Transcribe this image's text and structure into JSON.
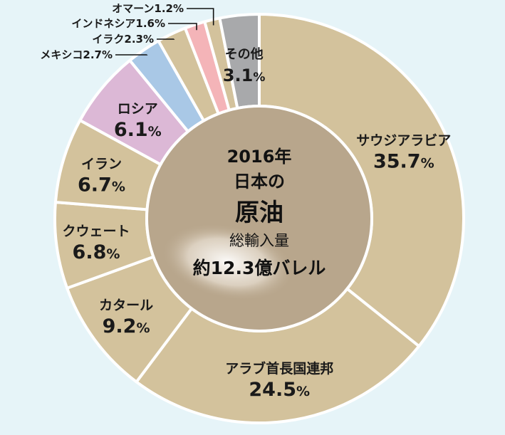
{
  "chart_data": {
    "type": "pie",
    "variant": "donut",
    "center": {
      "line1": "2016年",
      "line2": "日本の",
      "line3": "原油",
      "line4": "総輸入量",
      "line5": "約12.3億バレル"
    },
    "slices": [
      {
        "label": "サウジアラビア",
        "value": 35.7,
        "display": "35.7",
        "color": "#d3c29c"
      },
      {
        "label": "アラブ首長国連邦",
        "value": 24.5,
        "display": "24.5",
        "color": "#d3c29c"
      },
      {
        "label": "カタール",
        "value": 9.2,
        "display": "9.2",
        "color": "#d3c29c"
      },
      {
        "label": "クウェート",
        "value": 6.8,
        "display": "6.8",
        "color": "#d3c29c"
      },
      {
        "label": "イラン",
        "value": 6.7,
        "display": "6.7",
        "color": "#d3c29c"
      },
      {
        "label": "ロシア",
        "value": 6.1,
        "display": "6.1",
        "color": "#dcb8d6"
      },
      {
        "label": "メキシコ",
        "value": 2.7,
        "display": "2.7",
        "color": "#a9c8e6"
      },
      {
        "label": "イラク",
        "value": 2.3,
        "display": "2.3",
        "color": "#d3c29c"
      },
      {
        "label": "インドネシア",
        "value": 1.6,
        "display": "1.6",
        "color": "#f4b4b8"
      },
      {
        "label": "オマーン",
        "value": 1.2,
        "display": "1.2",
        "color": "#d3c29c"
      },
      {
        "label": "その他",
        "value": 3.1,
        "display": "3.1",
        "color": "#a8a9ab"
      }
    ],
    "percent_sign": "%",
    "colors": {
      "background": "#e6f4f8",
      "center_fill": "#b8a68c",
      "separator": "#ffffff"
    }
  }
}
